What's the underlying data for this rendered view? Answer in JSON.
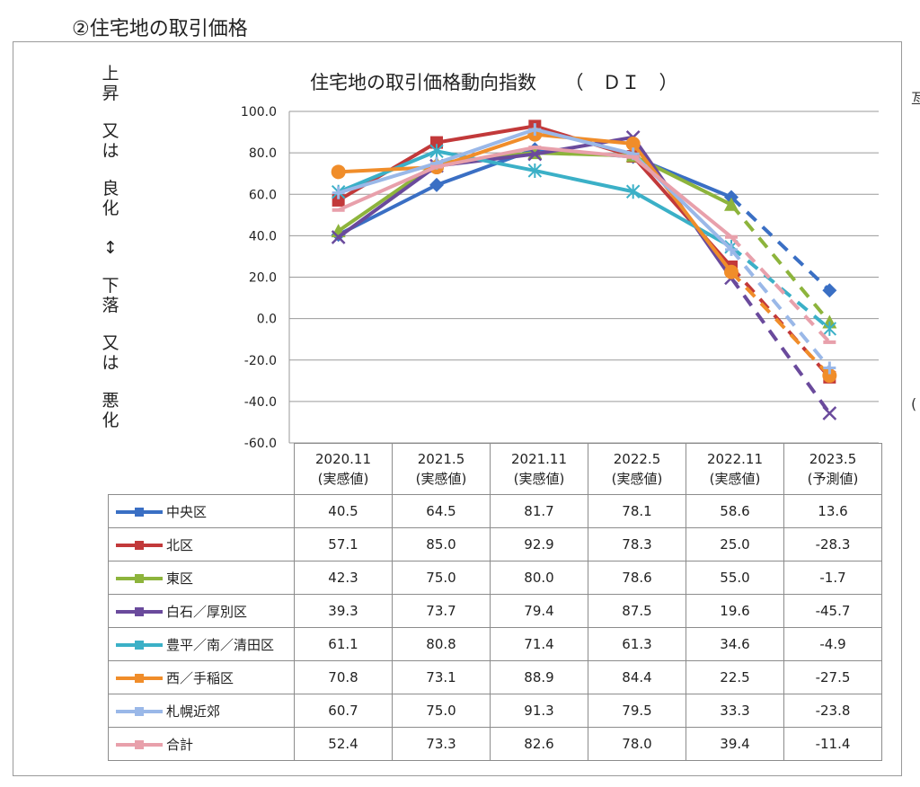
{
  "heading": "②住宅地の取引価格",
  "y_description": [
    "上",
    "昇",
    "又",
    "は",
    "良",
    "化",
    "↕",
    "下",
    "落",
    "又",
    "は",
    "悪",
    "化"
  ],
  "chart_data": {
    "type": "line",
    "title": "住宅地の取引価格動向指数　　（　ＤＩ　）",
    "categories": [
      "2020.11",
      "2021.5",
      "2021.11",
      "2022.5",
      "2022.11",
      "2023.5"
    ],
    "category_notes": [
      "(実感値)",
      "(実感値)",
      "(実感値)",
      "(実感値)",
      "(実感値)",
      "(予測値)"
    ],
    "ylim": [
      -60,
      100
    ],
    "yticks": [
      "100.0",
      "80.0",
      "60.0",
      "40.0",
      "20.0",
      "0.0",
      "-20.0",
      "-40.0",
      "-60.0"
    ],
    "grid": true,
    "forecast_last_point_dashed": true,
    "series": [
      {
        "name": "中央区",
        "color": "#3a6fc4",
        "marker": "diamond",
        "values": [
          40.5,
          64.5,
          81.7,
          78.1,
          58.6,
          13.6
        ],
        "labels": [
          "40.5",
          "64.5",
          "81.7",
          "78.1",
          "58.6",
          "13.6"
        ]
      },
      {
        "name": "北区",
        "color": "#c2393a",
        "marker": "square",
        "values": [
          57.1,
          85.0,
          92.9,
          78.3,
          25.0,
          -28.3
        ],
        "labels": [
          "57.1",
          "85.0",
          "92.9",
          "78.3",
          "25.0",
          "-28.3"
        ]
      },
      {
        "name": "東区",
        "color": "#8db43c",
        "marker": "triangle",
        "values": [
          42.3,
          75.0,
          80.0,
          78.6,
          55.0,
          -1.7
        ],
        "labels": [
          "42.3",
          "75.0",
          "80.0",
          "78.6",
          "55.0",
          "-1.7"
        ]
      },
      {
        "name": "白石／厚別区",
        "color": "#6a4a9c",
        "marker": "x",
        "values": [
          39.3,
          73.7,
          79.4,
          87.5,
          19.6,
          -45.7
        ],
        "labels": [
          "39.3",
          "73.7",
          "79.4",
          "87.5",
          "19.6",
          "-45.7"
        ]
      },
      {
        "name": "豊平／南／清田区",
        "color": "#3bb0c7",
        "marker": "star",
        "values": [
          61.1,
          80.8,
          71.4,
          61.3,
          34.6,
          -4.9
        ],
        "labels": [
          "61.1",
          "80.8",
          "71.4",
          "61.3",
          "34.6",
          "-4.9"
        ]
      },
      {
        "name": "西／手稲区",
        "color": "#f08d2a",
        "marker": "circle",
        "values": [
          70.8,
          73.1,
          88.9,
          84.4,
          22.5,
          -27.5
        ],
        "labels": [
          "70.8",
          "73.1",
          "88.9",
          "84.4",
          "22.5",
          "-27.5"
        ]
      },
      {
        "name": "札幌近郊",
        "color": "#9ab8e8",
        "marker": "plus",
        "values": [
          60.7,
          75.0,
          91.3,
          79.5,
          33.3,
          -23.8
        ],
        "labels": [
          "60.7",
          "75.0",
          "91.3",
          "79.5",
          "33.3",
          "-23.8"
        ]
      },
      {
        "name": "合計",
        "color": "#e8a0ab",
        "marker": "dash",
        "values": [
          52.4,
          73.3,
          82.6,
          78.0,
          39.4,
          -11.4
        ],
        "labels": [
          "52.4",
          "73.3",
          "82.6",
          "78.0",
          "39.4",
          "-11.4"
        ]
      }
    ]
  }
}
